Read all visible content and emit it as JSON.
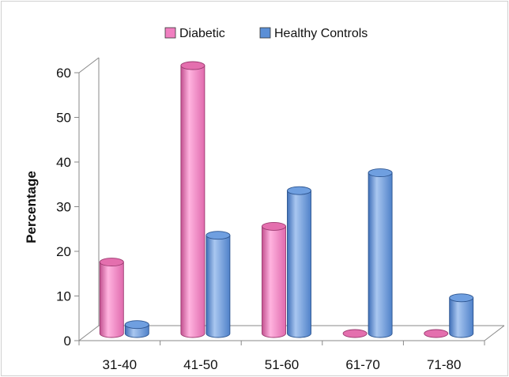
{
  "chart_data": {
    "type": "bar",
    "title": "",
    "xlabel": "",
    "ylabel": "Percentage",
    "categories": [
      "31-40",
      "41-50",
      "51-60",
      "61-70",
      "71-80"
    ],
    "yticks": [
      "0",
      "10",
      "20",
      "30",
      "40",
      "50",
      "60"
    ],
    "ylim": [
      0,
      60
    ],
    "grid": false,
    "legend_position": "top",
    "style": "3d-cylinder",
    "series": [
      {
        "name": "Diabetic",
        "values": [
          16,
          60,
          24,
          0,
          0
        ],
        "color": "#f07fc0"
      },
      {
        "name": "Healthy Controls",
        "values": [
          2,
          22,
          32,
          36,
          8
        ],
        "color": "#5b8fd6"
      }
    ]
  }
}
